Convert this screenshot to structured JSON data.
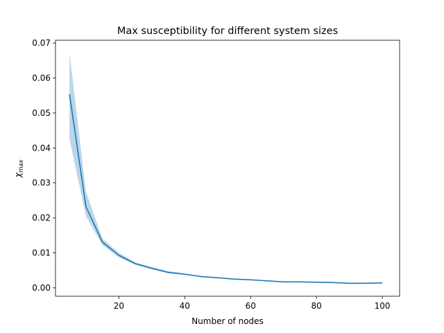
{
  "chart_data": {
    "type": "line",
    "title": "Max susceptibility for different system sizes",
    "xlabel": "Number of nodes",
    "ylabel_base": "χ",
    "ylabel_sub": "max",
    "xlim": [
      0.75,
      105.25
    ],
    "ylim": [
      -0.0024,
      0.0708
    ],
    "xticks": [
      20,
      40,
      60,
      80,
      100
    ],
    "yticks": [
      0.0,
      0.01,
      0.02,
      0.03,
      0.04,
      0.05,
      0.06,
      0.07
    ],
    "xtick_labels": [
      "20",
      "40",
      "60",
      "80",
      "100"
    ],
    "ytick_labels": [
      "0.00",
      "0.01",
      "0.02",
      "0.03",
      "0.04",
      "0.05",
      "0.06",
      "0.07"
    ],
    "grid": false,
    "colors": {
      "line": "#1f77b4",
      "band": "#1f77b4",
      "axes": "#000000"
    },
    "series": [
      {
        "x": [
          5,
          10,
          15,
          20,
          25,
          30,
          35,
          40,
          45,
          50,
          55,
          60,
          65,
          70,
          75,
          80,
          85,
          90,
          95,
          100
        ],
        "values": [
          0.0554,
          0.0232,
          0.0131,
          0.0093,
          0.0069,
          0.0056,
          0.0044,
          0.0039,
          0.0032,
          0.0029,
          0.0025,
          0.0023,
          0.002,
          0.0017,
          0.0017,
          0.0016,
          0.0015,
          0.0013,
          0.0013,
          0.0014
        ],
        "lower": [
          0.0425,
          0.0205,
          0.0122,
          0.0087,
          0.0066,
          0.0053,
          0.0042,
          0.0037,
          0.0031,
          0.0028,
          0.0024,
          0.0022,
          0.0019,
          0.0016,
          0.0016,
          0.0015,
          0.0014,
          0.0012,
          0.0012,
          0.0013
        ],
        "upper": [
          0.0672,
          0.0275,
          0.0141,
          0.01,
          0.0073,
          0.0059,
          0.0048,
          0.0041,
          0.0034,
          0.003,
          0.0026,
          0.0024,
          0.0021,
          0.0018,
          0.0018,
          0.0017,
          0.0016,
          0.0014,
          0.0014,
          0.0015
        ]
      }
    ]
  }
}
